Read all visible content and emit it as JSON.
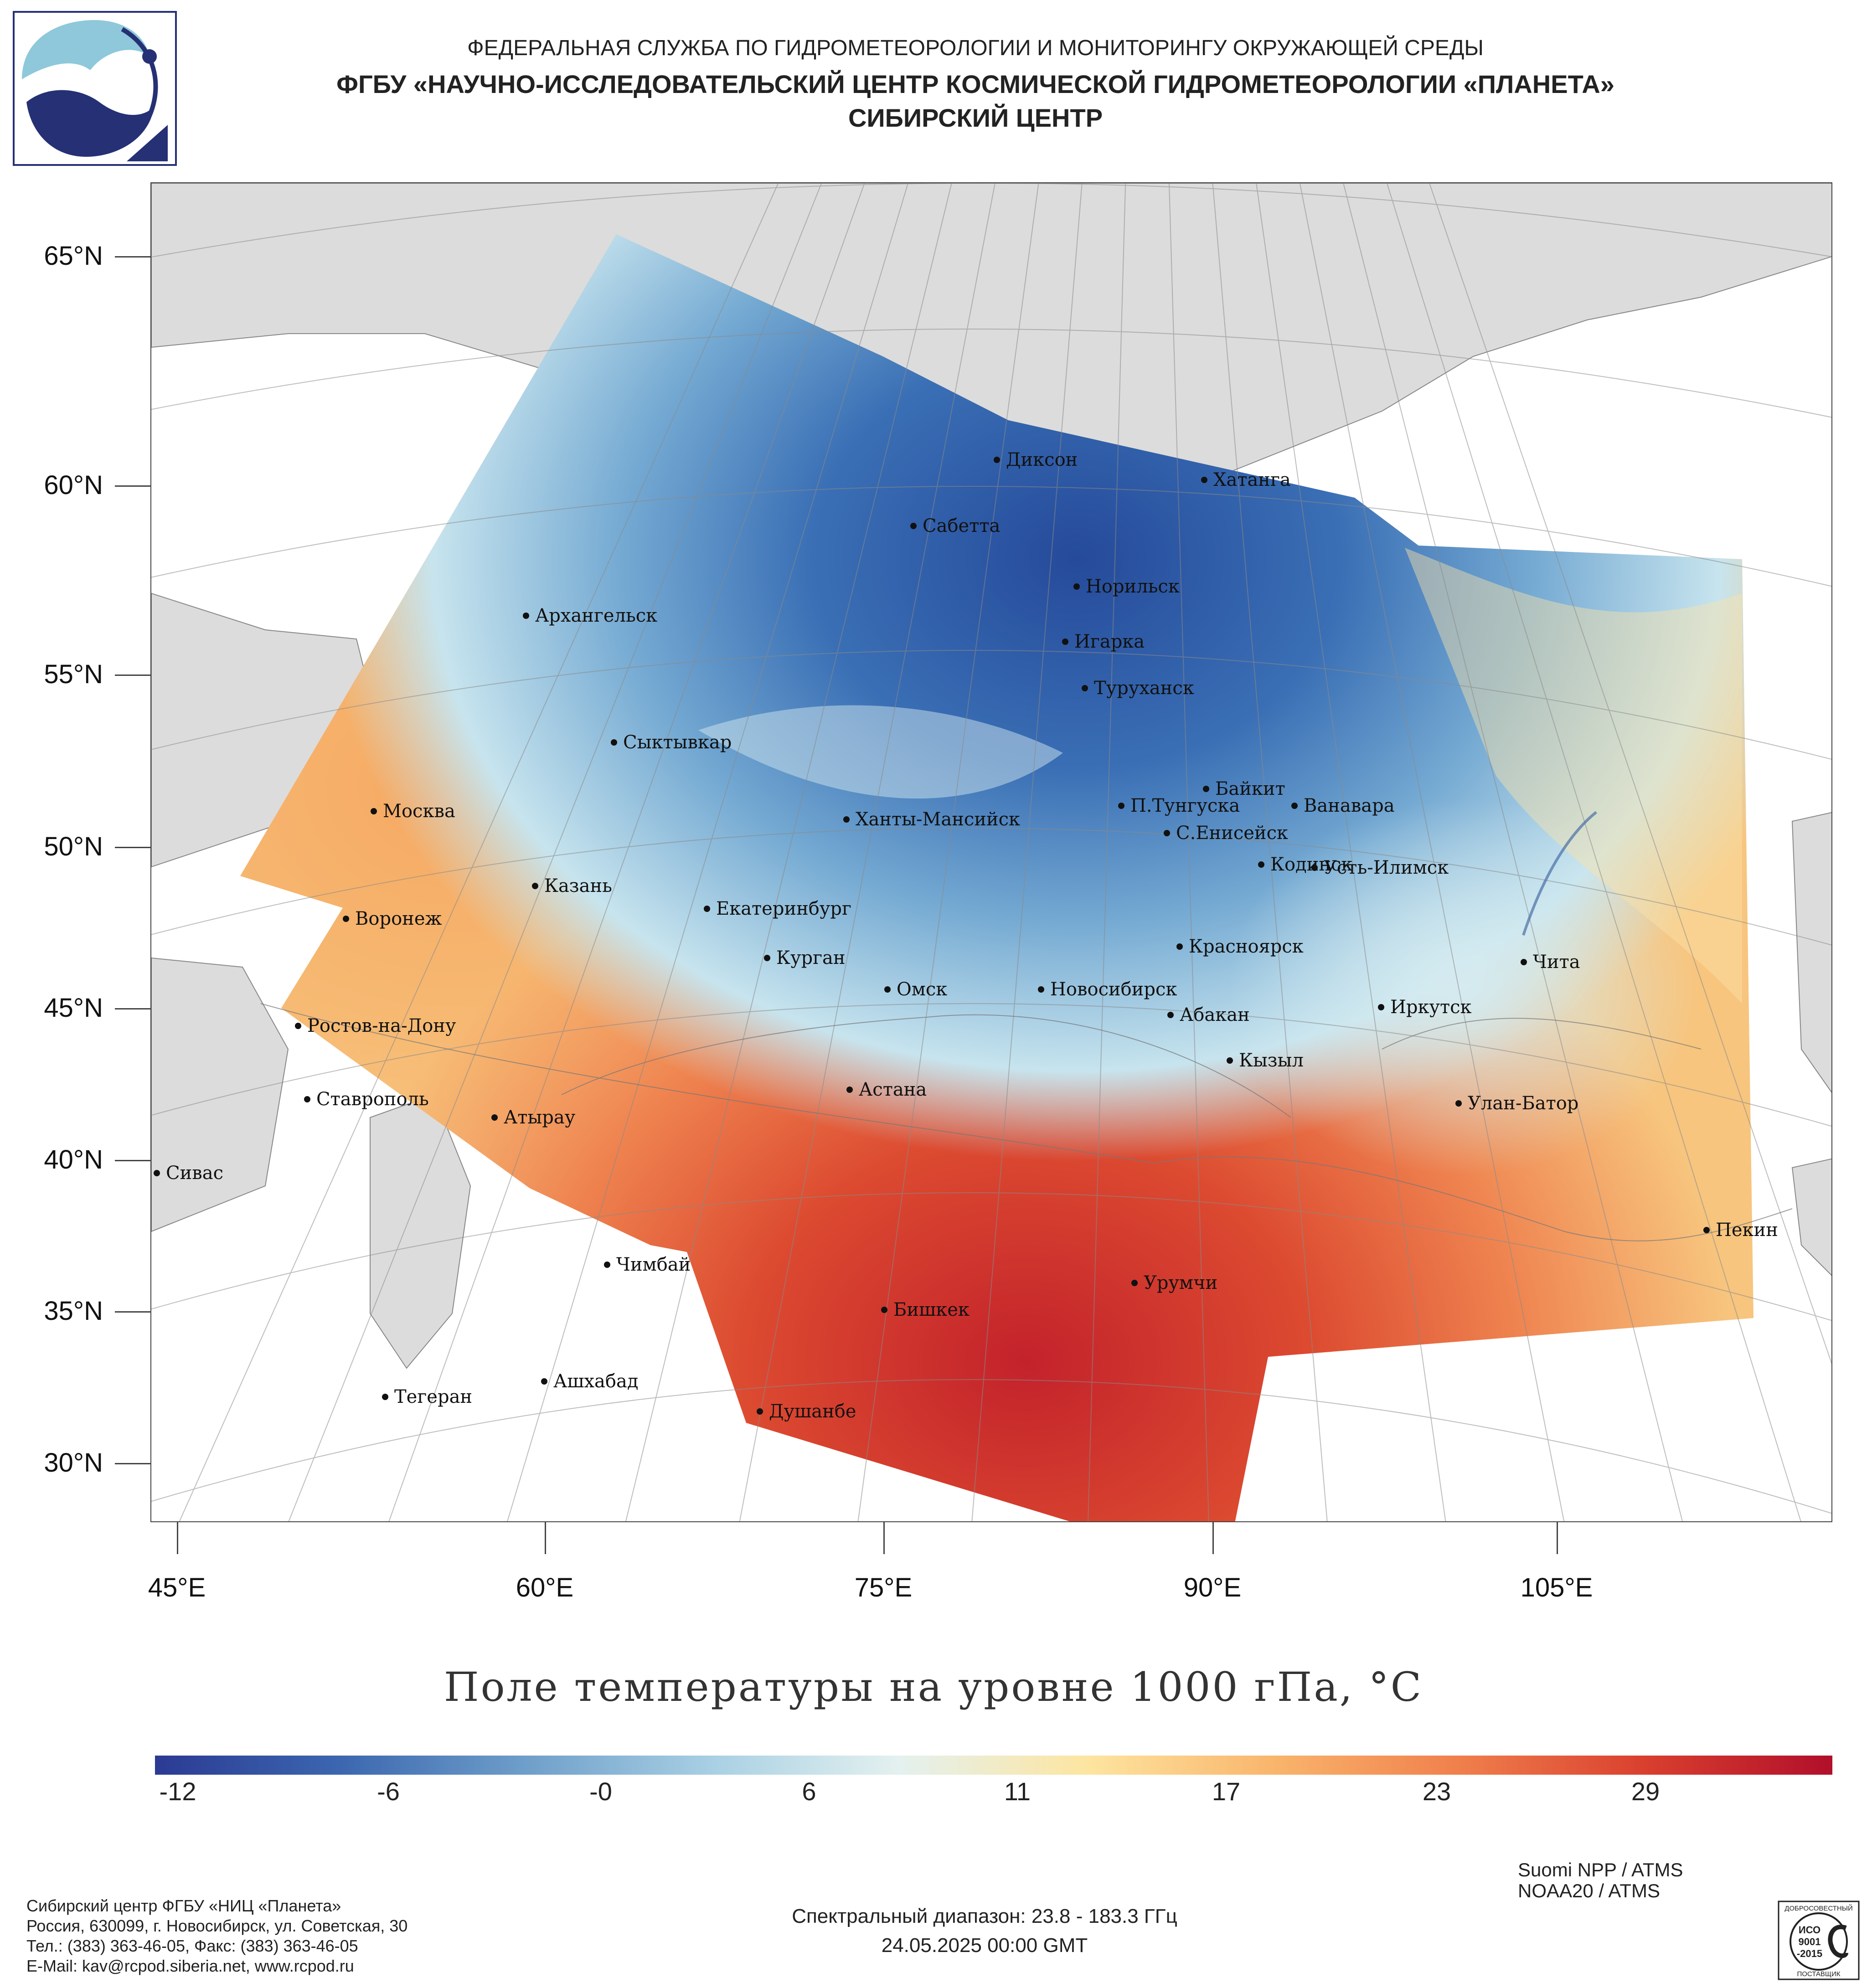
{
  "header": {
    "line1": "ФЕДЕРАЛЬНАЯ СЛУЖБА ПО ГИДРОМЕТЕОРОЛОГИИ И МОНИТОРИНГУ ОКРУЖАЮЩЕЙ СРЕДЫ",
    "line2": "ФГБУ «НАУЧНО-ИССЛЕДОВАТЕЛЬСКИЙ ЦЕНТР КОСМИЧЕСКОЙ ГИДРОМЕТЕОРОЛОГИИ «ПЛАНЕТА»",
    "line3": "СИБИРСКИЙ ЦЕНТР"
  },
  "map": {
    "latitudes": [
      "65°N",
      "60°N",
      "55°N",
      "50°N",
      "45°N",
      "40°N",
      "35°N",
      "30°N"
    ],
    "longitudes": [
      "45°E",
      "60°E",
      "75°E",
      "90°E",
      "105°E"
    ],
    "cities": [
      {
        "name": "Диксон"
      },
      {
        "name": "Хатанга"
      },
      {
        "name": "Сабетта"
      },
      {
        "name": "Норильск"
      },
      {
        "name": "Архангельск"
      },
      {
        "name": "Игарка"
      },
      {
        "name": "Туруханск"
      },
      {
        "name": "Сыктывкар"
      },
      {
        "name": "Байкит"
      },
      {
        "name": "П.Тунгуска"
      },
      {
        "name": "Ванавара"
      },
      {
        "name": "Москва"
      },
      {
        "name": "Ханты-Мансийск"
      },
      {
        "name": "С.Енисейск"
      },
      {
        "name": "Кодинск"
      },
      {
        "name": "Усть-Илимск"
      },
      {
        "name": "Казань"
      },
      {
        "name": "Екатеринбург"
      },
      {
        "name": "Воронеж"
      },
      {
        "name": "Красноярск"
      },
      {
        "name": "Курган"
      },
      {
        "name": "Чита"
      },
      {
        "name": "Омск"
      },
      {
        "name": "Новосибирск"
      },
      {
        "name": "Иркутск"
      },
      {
        "name": "Ростов-на-Дону"
      },
      {
        "name": "Абакан"
      },
      {
        "name": "Кызыл"
      },
      {
        "name": "Ставрополь"
      },
      {
        "name": "Астана"
      },
      {
        "name": "Улан-Батор"
      },
      {
        "name": "Атырау"
      },
      {
        "name": "Сивас"
      },
      {
        "name": "Пекин"
      },
      {
        "name": "Чимбай"
      },
      {
        "name": "Урумчи"
      },
      {
        "name": "Бишкек"
      },
      {
        "name": "Ашхабад"
      },
      {
        "name": "Тегеран"
      },
      {
        "name": "Душанбе"
      }
    ]
  },
  "title": "Поле температуры на уровне 1000 гПа, °C",
  "colorbar": {
    "labels": [
      "-12",
      "-6",
      "-0",
      "6",
      "11",
      "17",
      "23",
      "29"
    ],
    "colors": [
      "#2b3a93",
      "#3c67b0",
      "#6f9fca",
      "#a9d0e4",
      "#e4f1ef",
      "#fde5a0",
      "#f9b56c",
      "#f07f4c",
      "#d93f2e",
      "#b10f2b"
    ]
  },
  "footer": {
    "org_lines": [
      "Сибирский центр ФГБУ «НИЦ «Планета»",
      "Россия, 630099, г. Новосибирск, ул. Советская, 30",
      "Тел.: (383) 363-46-05, Факс: (383) 363-46-05",
      "E-Mail: kav@rcpod.siberia.net, www.rcpod.ru"
    ],
    "spectral": "Спектральный диапазон: 23.8 - 183.3 ГГц",
    "datetime": "24.05.2025 00:00 GMT",
    "satellites": [
      "Suomi NPP / ATMS",
      "NOAA20 / ATMS"
    ],
    "iso_badge": {
      "top": "ДОБРОСОВЕСТНЫЙ",
      "mid1": "ИСО",
      "mid2": "9001",
      "mid3": "-2015",
      "bottom": "ПОСТАВЩИК"
    }
  }
}
